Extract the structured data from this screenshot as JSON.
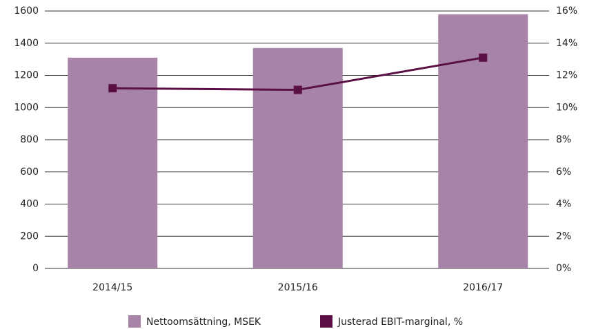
{
  "chart_data": {
    "type": "bar",
    "categories": [
      "2014/15",
      "2015/16",
      "2016/17"
    ],
    "series": [
      {
        "name": "Nettoomsättning, MSEK",
        "color": "#a784a7",
        "type": "bar",
        "values": [
          1310,
          1370,
          1580
        ]
      },
      {
        "name": "Justerad EBIT-marginal, %",
        "color": "#5a0f45",
        "type": "line",
        "axis": "y2",
        "values": [
          11.2,
          11.1,
          13.1
        ]
      }
    ],
    "ylim": [
      0,
      1600
    ],
    "yticks": [
      0,
      200,
      400,
      600,
      800,
      1000,
      1200,
      1400,
      1600
    ],
    "y2lim": [
      0,
      16
    ],
    "y2ticks": [
      {
        "value": 0,
        "label": "0%"
      },
      {
        "value": 2,
        "label": "2%"
      },
      {
        "value": 4,
        "label": "4%"
      },
      {
        "value": 6,
        "label": "6%"
      },
      {
        "value": 8,
        "label": "8%"
      },
      {
        "value": 10,
        "label": "10%"
      },
      {
        "value": 12,
        "label": "12%"
      },
      {
        "value": 14,
        "label": "14%"
      },
      {
        "value": 16,
        "label": "16%"
      }
    ],
    "grid": true,
    "legend": "bottom"
  }
}
